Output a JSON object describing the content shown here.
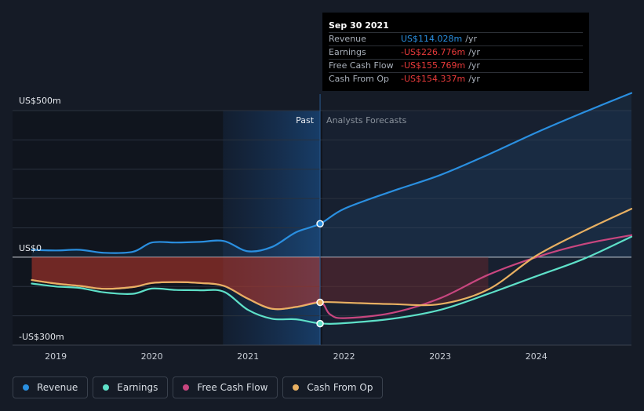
{
  "tooltip": {
    "date": "Sep 30 2021",
    "rows": [
      {
        "label": "Revenue",
        "value": "US$114.028m",
        "unit": "/yr"
      },
      {
        "label": "Earnings",
        "value": "-US$226.776m",
        "unit": "/yr"
      },
      {
        "label": "Free Cash Flow",
        "value": "-US$155.769m",
        "unit": "/yr"
      },
      {
        "label": "Cash From Op",
        "value": "-US$154.337m",
        "unit": "/yr"
      }
    ]
  },
  "legend": [
    {
      "label": "Revenue",
      "color": "#2a8fe0"
    },
    {
      "label": "Earnings",
      "color": "#5ee0c8"
    },
    {
      "label": "Free Cash Flow",
      "color": "#c8467f"
    },
    {
      "label": "Cash From Op",
      "color": "#e8b062"
    }
  ],
  "chart_data": {
    "type": "line",
    "title": "",
    "ylabel": "",
    "xlabel": "",
    "y_tick_labels": {
      "top": "US$500m",
      "zero": "US$0",
      "bottom": "-US$300m"
    },
    "ylim": [
      -300,
      500
    ],
    "xlim": [
      2018.55,
      2024.99
    ],
    "x_ticks": [
      2019,
      2020,
      2021,
      2022,
      2023,
      2024
    ],
    "x_tick_labels": [
      "2019",
      "2020",
      "2021",
      "2022",
      "2023",
      "2024"
    ],
    "past_label": "Past",
    "forecast_label": "Analysts Forecasts",
    "past_boundary": 2021.75,
    "highlight_start": 2020.74,
    "series": [
      {
        "name": "Revenue",
        "color": "#2a8fe0",
        "x": [
          2018.75,
          2019.0,
          2019.25,
          2019.5,
          2019.8,
          2020.0,
          2020.25,
          2020.5,
          2020.75,
          2021.0,
          2021.25,
          2021.5,
          2021.75,
          2022.0,
          2022.5,
          2023.0,
          2023.5,
          2024.0,
          2024.5,
          2024.99
        ],
        "y": [
          25,
          23,
          25,
          15,
          18,
          50,
          50,
          52,
          55,
          20,
          35,
          85,
          114,
          165,
          225,
          280,
          350,
          425,
          495,
          560
        ]
      },
      {
        "name": "Earnings",
        "color": "#5ee0c8",
        "x": [
          2018.75,
          2019.0,
          2019.25,
          2019.5,
          2019.8,
          2020.0,
          2020.25,
          2020.5,
          2020.75,
          2021.0,
          2021.25,
          2021.5,
          2021.75,
          2022.0,
          2022.5,
          2023.0,
          2023.5,
          2024.0,
          2024.5,
          2024.99
        ],
        "y": [
          -90,
          -100,
          -105,
          -120,
          -125,
          -107,
          -112,
          -113,
          -118,
          -180,
          -210,
          -212,
          -226,
          -225,
          -210,
          -180,
          -125,
          -65,
          -5,
          70
        ]
      },
      {
        "name": "Free Cash Flow",
        "color": "#c8467f",
        "x": [
          2018.75,
          2019.0,
          2019.25,
          2019.5,
          2019.8,
          2020.0,
          2020.25,
          2020.5,
          2020.75,
          2021.0,
          2021.25,
          2021.5,
          2021.75,
          2021.85,
          2022.0,
          2022.5,
          2023.0,
          2023.5,
          2024.0,
          2024.5,
          2024.99
        ],
        "y": [
          -78,
          -90,
          -98,
          -108,
          -102,
          -88,
          -85,
          -88,
          -98,
          -142,
          -176,
          -170,
          -154,
          -194,
          -208,
          -190,
          -140,
          -60,
          0,
          45,
          75
        ]
      },
      {
        "name": "Cash From Op",
        "color": "#e8b062",
        "x": [
          2018.75,
          2019.0,
          2019.25,
          2019.5,
          2019.8,
          2020.0,
          2020.25,
          2020.5,
          2020.75,
          2021.0,
          2021.25,
          2021.5,
          2021.75,
          2022.0,
          2022.5,
          2023.0,
          2023.5,
          2024.0,
          2024.5,
          2024.99
        ],
        "y": [
          -78,
          -90,
          -98,
          -108,
          -102,
          -88,
          -85,
          -88,
          -98,
          -142,
          -176,
          -170,
          -154,
          -155,
          -160,
          -160,
          -110,
          5,
          90,
          165
        ]
      }
    ],
    "markers": [
      {
        "series": "Revenue",
        "x": 2021.75,
        "y": 114.028
      },
      {
        "series": "Earnings",
        "x": 2021.75,
        "y": -226.776
      },
      {
        "series": "Cash From Op",
        "x": 2021.75,
        "y": -154.337
      }
    ]
  }
}
